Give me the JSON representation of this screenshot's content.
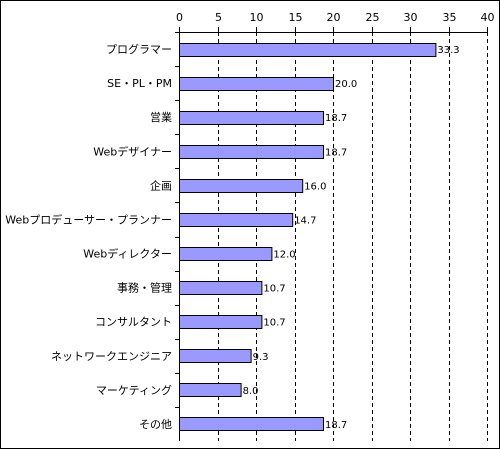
{
  "chart_data": {
    "type": "bar",
    "orientation": "horizontal",
    "x_axis_position": "top",
    "title": "",
    "xlabel": "",
    "ylabel": "",
    "xlim": [
      0,
      40
    ],
    "xticks": [
      0,
      5,
      10,
      15,
      20,
      25,
      30,
      35,
      40
    ],
    "grid": "vertical dashed",
    "bar_color": "#9999ff",
    "categories": [
      "プログラマー",
      "SE・PL・PM",
      "営業",
      "Webデザイナー",
      "企画",
      "Webプロデューサー・プランナー",
      "Webディレクター",
      "事務・管理",
      "コンサルタント",
      "ネットワークエンジニア",
      "マーケティング",
      "その他"
    ],
    "values": [
      33.3,
      20.0,
      18.7,
      18.7,
      16.0,
      14.7,
      12.0,
      10.7,
      10.7,
      9.3,
      8.0,
      18.7
    ],
    "value_labels": [
      "33.3",
      "20.0",
      "18.7",
      "18.7",
      "16.0",
      "14.7",
      "12.0",
      "10.7",
      "10.7",
      "9.3",
      "8.0",
      "18.7"
    ]
  }
}
